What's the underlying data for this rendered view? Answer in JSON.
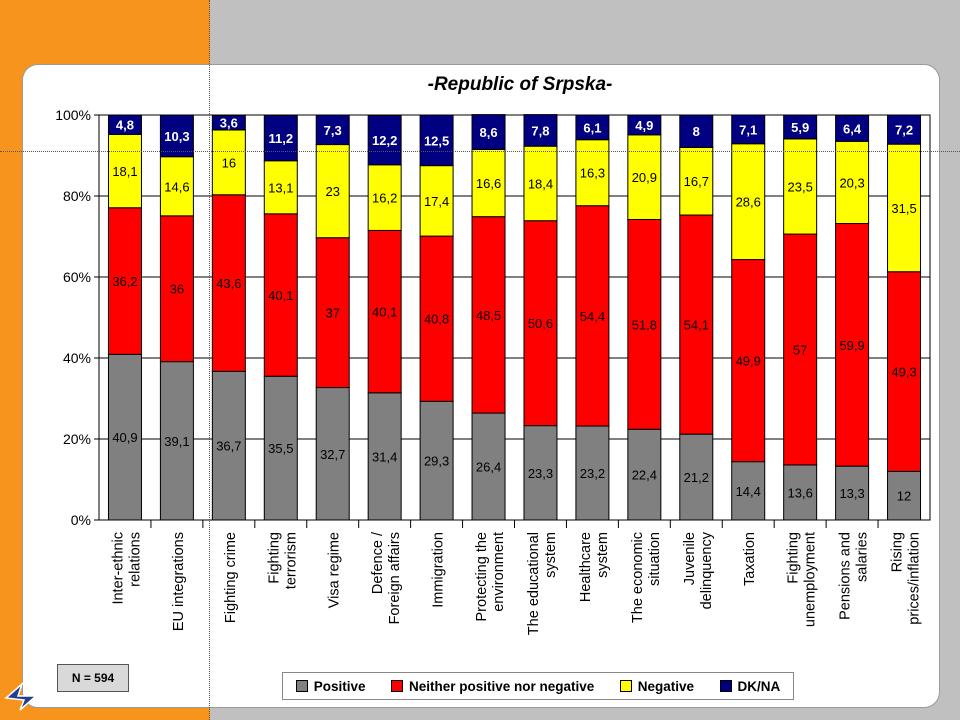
{
  "chart_data": {
    "type": "bar",
    "stacked": true,
    "title": "-Republic of Srpska-",
    "categories": [
      [
        "Inter-ethnic",
        "relations"
      ],
      [
        "EU integrations"
      ],
      [
        "Fighting crime"
      ],
      [
        "Fighting",
        "terrorism"
      ],
      [
        "Visa regime"
      ],
      [
        "Defence /",
        "Foreign affairs"
      ],
      [
        "Immigration"
      ],
      [
        "Protecting the",
        "environment"
      ],
      [
        "The educational",
        "system"
      ],
      [
        "Healthcare",
        "system"
      ],
      [
        "The economic",
        "situation"
      ],
      [
        "Juvenile",
        "delinquency"
      ],
      [
        "Taxation"
      ],
      [
        "Fighting",
        "unemployment"
      ],
      [
        "Pensions and",
        "salaries"
      ],
      [
        "Rising",
        "prices/inflation"
      ]
    ],
    "series": [
      {
        "name": "Positive",
        "color": "#808080",
        "values": [
          40.9,
          39.1,
          36.7,
          35.5,
          32.7,
          31.4,
          29.3,
          26.4,
          23.3,
          23.2,
          22.4,
          21.2,
          14.4,
          13.6,
          13.3,
          12
        ],
        "labels": [
          "40,9",
          "39,1",
          "36,7",
          "35,5",
          "32,7",
          "31,4",
          "29,3",
          "26,4",
          "23,3",
          "23,2",
          "22,4",
          "21,2",
          "14,4",
          "13,6",
          "13,3",
          "12"
        ]
      },
      {
        "name": "Neither positive nor negative",
        "color": "#ff0000",
        "values": [
          36.2,
          36,
          43.6,
          40.1,
          37,
          40.1,
          40.8,
          48.5,
          50.6,
          54.4,
          51.8,
          54.1,
          49.9,
          57,
          59.9,
          49.3
        ],
        "labels": [
          "36,2",
          "36",
          "43,6",
          "40,1",
          "37",
          "40,1",
          "40,8",
          "48,5",
          "50,6",
          "54,4",
          "51,8",
          "54,1",
          "49,9",
          "57",
          "59,9",
          "49,3"
        ]
      },
      {
        "name": "Negative",
        "color": "#ffff00",
        "values": [
          18.1,
          14.6,
          16,
          13.1,
          23,
          16.2,
          17.4,
          16.6,
          18.4,
          16.3,
          20.9,
          16.7,
          28.6,
          23.5,
          20.3,
          31.5
        ],
        "labels": [
          "18,1",
          "14,6",
          "16",
          "13,1",
          "23",
          "16,2",
          "17,4",
          "16,6",
          "18,4",
          "16,3",
          "20,9",
          "16,7",
          "28,6",
          "23,5",
          "20,3",
          "31,5"
        ]
      },
      {
        "name": "DK/NA",
        "color": "#000080",
        "values": [
          4.8,
          10.3,
          3.6,
          11.2,
          7.3,
          12.2,
          12.5,
          8.6,
          7.8,
          6.1,
          4.9,
          8,
          7.1,
          5.9,
          6.4,
          7.2
        ],
        "labels": [
          "4,8",
          "10,3",
          "3,6",
          "11,2",
          "7,3",
          "12,2",
          "12,5",
          "8,6",
          "7,8",
          "6,1",
          "4,9",
          "8",
          "7,1",
          "5,9",
          "6,4",
          "7,2"
        ]
      }
    ],
    "yticks": [
      "0%",
      "20%",
      "40%",
      "60%",
      "80%",
      "100%"
    ],
    "ylim": [
      0,
      100
    ],
    "grid": true,
    "legend_position": "bottom"
  },
  "note": "N = 594"
}
